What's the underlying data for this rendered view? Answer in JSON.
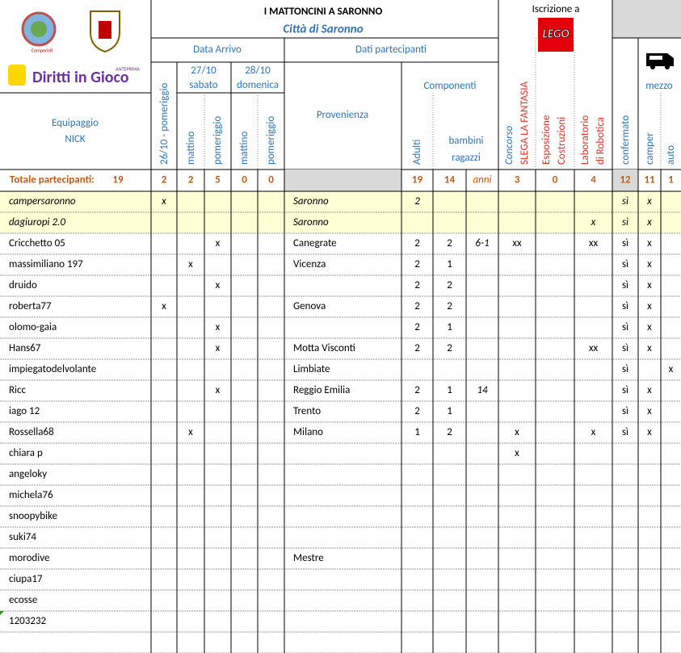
{
  "header": {
    "logo": {
      "club": "Comperisti",
      "brand": "Diritti in Gioco",
      "tag": "ANTEPRIMA"
    },
    "title": "I MATTONCINI A SARONNO",
    "subtitle": "Città di Saronno",
    "data_arrivo": "Data Arrivo",
    "dati_partecipanti": "Dati partecipanti",
    "iscrizione": "Iscrizione a",
    "lego": "LEGO",
    "mezzo": "mezzo",
    "day1": "26/10 - pomeriggio",
    "day2": {
      "date": "27/10",
      "name": "sabato",
      "mattino": "mattino",
      "pomeriggio": "pomeriggio"
    },
    "day3": {
      "date": "28/10",
      "name": "domenica",
      "mattino": "mattino",
      "pomeriggio": "pomeriggio"
    },
    "equipaggio": "Equipaggio",
    "nick": "NICK",
    "provenienza": "Provenienza",
    "componenti": "Componenti",
    "adulti": "Adulti",
    "bambini": "bambini",
    "ragazzi": "ragazzi",
    "concorso": "Concorso",
    "slega": "SLEGA LA FANTASIA",
    "esposizione": [
      "Esposizione",
      "Costruzioni"
    ],
    "laboratorio": [
      "Laboratorio",
      "di Robotica"
    ],
    "confermato": "confermato",
    "camper": "camper",
    "auto": "auto"
  },
  "table": {
    "totals": {
      "label": "Totale partecipanti:",
      "total": 19,
      "arr_26p": 2,
      "arr_27m": 2,
      "arr_27p": 5,
      "arr_28m": 0,
      "arr_28p": 0,
      "adulti": 19,
      "bambini": 14,
      "anni": "anni",
      "concorso": 3,
      "esposizione": 0,
      "laboratorio": 4,
      "confermato": 12,
      "camper": 11,
      "auto": 1
    },
    "rows": [
      {
        "highlight": true,
        "equipaggio": "campersaronno",
        "arr_26p": "x",
        "provenienza": "Saronno",
        "adulti": 2,
        "confermato": "sì",
        "camper": "x"
      },
      {
        "highlight": true,
        "equipaggio": "dagiuropi 2.0",
        "provenienza": "Saronno",
        "laboratorio": "x",
        "confermato": "sì",
        "camper": "x"
      },
      {
        "equipaggio": "Cricchetto 05",
        "arr_27p": "x",
        "provenienza": "Canegrate",
        "adulti": 2,
        "bambini": 2,
        "anni": "6-1",
        "concorso": "xx",
        "laboratorio": "xx",
        "confermato": "sì",
        "camper": "x"
      },
      {
        "equipaggio": "massimiliano 197",
        "arr_27m": "x",
        "provenienza": "Vicenza",
        "adulti": 2,
        "bambini": 1,
        "confermato": "sì",
        "camper": "x"
      },
      {
        "equipaggio": "druido",
        "arr_27p": "x",
        "adulti": 2,
        "bambini": 2,
        "confermato": "sì",
        "camper": "x"
      },
      {
        "equipaggio": "roberta77",
        "arr_26p": "x",
        "provenienza": "Genova",
        "adulti": 2,
        "bambini": 2,
        "confermato": "sì",
        "camper": "x"
      },
      {
        "equipaggio": "olomo-gaia",
        "arr_27p": "x",
        "adulti": 2,
        "bambini": 1,
        "confermato": "sì",
        "camper": "x"
      },
      {
        "equipaggio": "Hans67",
        "arr_27p": "x",
        "provenienza": "Motta Visconti",
        "adulti": 2,
        "bambini": 2,
        "laboratorio": "xx",
        "confermato": "sì",
        "camper": "x"
      },
      {
        "equipaggio": "impiegatodelvolante",
        "provenienza": "Limbiate",
        "confermato": "sì",
        "auto": "x"
      },
      {
        "equipaggio": "Ricc",
        "arr_27p": "x",
        "provenienza": "Reggio Emilia",
        "adulti": 2,
        "bambini": 1,
        "anni": 14,
        "confermato": "sì",
        "camper": "x"
      },
      {
        "equipaggio": "iago 12",
        "provenienza": "Trento",
        "adulti": 2,
        "bambini": 1,
        "confermato": "sì",
        "camper": "x"
      },
      {
        "equipaggio": "Rossella68",
        "arr_27m": "x",
        "provenienza": "Milano",
        "adulti": 1,
        "bambini": 2,
        "concorso": "x",
        "laboratorio": "x",
        "confermato": "sì",
        "camper": "x"
      },
      {
        "equipaggio": "chiara p",
        "concorso": "x"
      },
      {
        "equipaggio": "angeloky"
      },
      {
        "equipaggio": "michela76"
      },
      {
        "equipaggio": "snoopybike"
      },
      {
        "equipaggio": "suki74"
      },
      {
        "equipaggio": "morodive",
        "provenienza": "Mestre"
      },
      {
        "equipaggio": "ciupa17"
      },
      {
        "equipaggio": "ecosse"
      },
      {
        "equipaggio": "1203232"
      }
    ]
  }
}
